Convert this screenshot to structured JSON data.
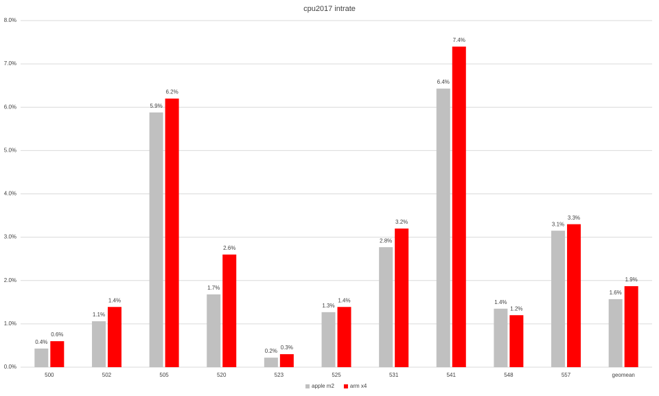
{
  "chart_data": {
    "type": "bar",
    "title": "cpu2017 intrate",
    "categories": [
      "500",
      "502",
      "505",
      "520",
      "523",
      "525",
      "531",
      "541",
      "548",
      "557",
      "geomean"
    ],
    "series": [
      {
        "name": "apple m2",
        "color": "#c0c0c0",
        "values": [
          0.43,
          1.06,
          5.88,
          1.68,
          0.22,
          1.27,
          2.77,
          6.43,
          1.35,
          3.15,
          1.57
        ],
        "value_labels": [
          "0.4%",
          "1.1%",
          "5.9%",
          "1.7%",
          "0.2%",
          "1.3%",
          "2.8%",
          "6.4%",
          "1.4%",
          "3.1%",
          "1.6%"
        ]
      },
      {
        "name": "arm x4",
        "color": "#ff0000",
        "values": [
          0.6,
          1.39,
          6.2,
          2.6,
          0.3,
          1.39,
          3.2,
          7.4,
          1.2,
          3.3,
          1.87
        ],
        "value_labels": [
          "0.6%",
          "1.4%",
          "6.2%",
          "2.6%",
          "0.3%",
          "1.4%",
          "3.2%",
          "7.4%",
          "1.2%",
          "3.3%",
          "1.9%"
        ]
      }
    ],
    "ylim": [
      0,
      8
    ],
    "yticks": [
      {
        "value": 0,
        "label": "0.0%"
      },
      {
        "value": 1,
        "label": "1.0%"
      },
      {
        "value": 2,
        "label": "2.0%"
      },
      {
        "value": 3,
        "label": "3.0%"
      },
      {
        "value": 4,
        "label": "4.0%"
      },
      {
        "value": 5,
        "label": "5.0%"
      },
      {
        "value": 6,
        "label": "6.0%"
      },
      {
        "value": 7,
        "label": "7.0%"
      },
      {
        "value": 8,
        "label": "8.0%"
      }
    ],
    "grid": true,
    "legend": "bottom"
  }
}
